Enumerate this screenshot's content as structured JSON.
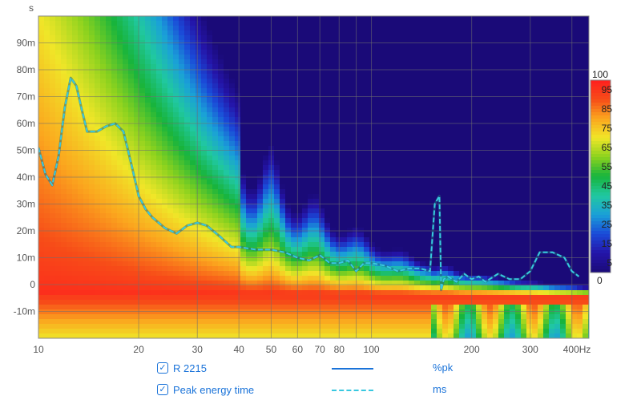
{
  "chart_data": {
    "type": "heatmap",
    "title": "",
    "xlabel": "Hz",
    "ylabel": "s",
    "x_scale": "log",
    "xlim": [
      10,
      450
    ],
    "ylim": [
      -0.02,
      0.1
    ],
    "x_ticks": [
      {
        "value": 10,
        "label": "10"
      },
      {
        "value": 20,
        "label": "20"
      },
      {
        "value": 30,
        "label": "30"
      },
      {
        "value": 40,
        "label": "40"
      },
      {
        "value": 50,
        "label": "50"
      },
      {
        "value": 60,
        "label": "60"
      },
      {
        "value": 70,
        "label": "70"
      },
      {
        "value": 80,
        "label": "80"
      },
      {
        "value": 100,
        "label": "100"
      },
      {
        "value": 200,
        "label": "200"
      },
      {
        "value": 300,
        "label": "300"
      },
      {
        "value": 400,
        "label": "400Hz"
      }
    ],
    "x_minor_ticks": [
      90
    ],
    "y_ticks": [
      {
        "value": 0.09,
        "label": "90m"
      },
      {
        "value": 0.08,
        "label": "80m"
      },
      {
        "value": 0.07,
        "label": "70m"
      },
      {
        "value": 0.06,
        "label": "60m"
      },
      {
        "value": 0.05,
        "label": "50m"
      },
      {
        "value": 0.04,
        "label": "40m"
      },
      {
        "value": 0.03,
        "label": "30m"
      },
      {
        "value": 0.02,
        "label": "20m"
      },
      {
        "value": 0.01,
        "label": "10m"
      },
      {
        "value": 0,
        "label": "0"
      },
      {
        "value": -0.01,
        "label": "-10m"
      }
    ],
    "grid": true,
    "colorbar": {
      "label_top": "100",
      "label_bottom": "0",
      "ticks": [
        "95",
        "85",
        "75",
        "65",
        "55",
        "45",
        "35",
        "25",
        "15",
        "5"
      ],
      "tick_values": [
        95,
        85,
        75,
        65,
        55,
        45,
        35,
        25,
        15,
        5
      ],
      "range": [
        0,
        100
      ],
      "colors": [
        "#1a0a78",
        "#2414a8",
        "#1a4ad8",
        "#1aa0d8",
        "#20c8a0",
        "#18b43c",
        "#8cd21e",
        "#f0e628",
        "#fba61e",
        "#f74c18",
        "#ff1e1e"
      ]
    },
    "series": [
      {
        "name": "Peak energy time",
        "style": "dashed",
        "color": "#38c8e0",
        "x": [
          10,
          10.5,
          11,
          11.5,
          12,
          12.5,
          13,
          13.5,
          14,
          15,
          16,
          17,
          18,
          19,
          20,
          21,
          22,
          24,
          26,
          28,
          30,
          32,
          35,
          38,
          40,
          45,
          50,
          55,
          60,
          65,
          70,
          75,
          80,
          85,
          90,
          95,
          100,
          110,
          120,
          130,
          140,
          150,
          155,
          160,
          162,
          165,
          170,
          180,
          190,
          200,
          210,
          220,
          240,
          260,
          280,
          300,
          320,
          350,
          380,
          400,
          420
        ],
        "y": [
          0.051,
          0.041,
          0.037,
          0.048,
          0.066,
          0.077,
          0.074,
          0.065,
          0.057,
          0.057,
          0.059,
          0.06,
          0.057,
          0.045,
          0.033,
          0.028,
          0.025,
          0.021,
          0.019,
          0.022,
          0.023,
          0.022,
          0.018,
          0.014,
          0.014,
          0.013,
          0.013,
          0.012,
          0.01,
          0.009,
          0.011,
          0.008,
          0.008,
          0.009,
          0.005,
          0.008,
          0.008,
          0.007,
          0.005,
          0.006,
          0.006,
          0.005,
          0.03,
          0.033,
          -0.002,
          0.002,
          0.003,
          0.001,
          0.004,
          0.002,
          0.003,
          0.001,
          0.004,
          0.002,
          0.002,
          0.005,
          0.012,
          0.012,
          0.01,
          0.005,
          0.003
        ]
      }
    ]
  },
  "legend": {
    "items": [
      {
        "name": "R 2215",
        "unit": "%pk",
        "line_style": "solid",
        "color": "#1a73d9",
        "checked": "✓"
      },
      {
        "name": "Peak energy time",
        "unit": "ms",
        "line_style": "dashed",
        "color": "#38c8e0",
        "checked": "✓"
      }
    ]
  }
}
